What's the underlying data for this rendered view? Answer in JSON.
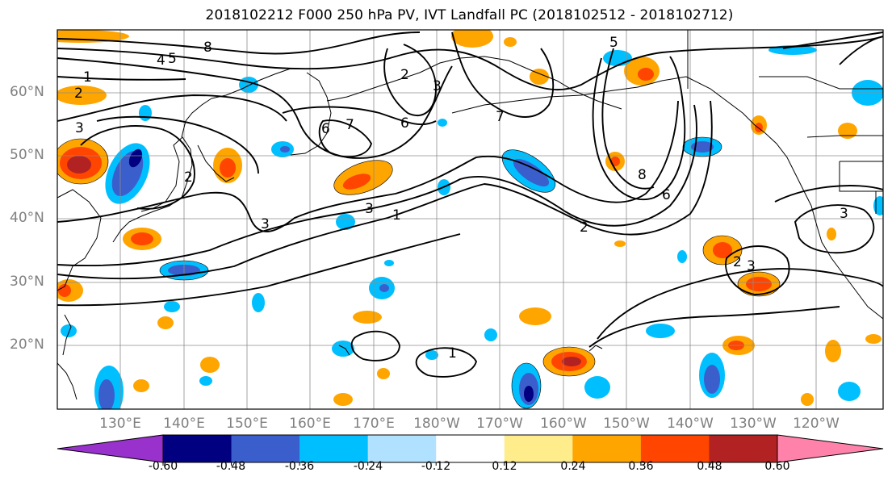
{
  "title": "2018102212 F000 250 hPa PV, IVT Landfall PC (2018102512 - 2018102712)",
  "lat_labels": [
    "60°N",
    "50°N",
    "40°N",
    "30°N",
    "20°N"
  ],
  "lon_labels": [
    "130°E",
    "140°E",
    "150°E",
    "160°E",
    "170°E",
    "180°W",
    "170°W",
    "160°W",
    "150°W",
    "140°W",
    "130°W",
    "120°W"
  ],
  "contour_labels": [
    "8",
    "5",
    "4",
    "1",
    "2",
    "3",
    "7",
    "6",
    "5",
    "3",
    "2",
    "7",
    "6",
    "2",
    "8",
    "6",
    "2",
    "3",
    "1",
    "3",
    "3",
    "2",
    "1",
    "3"
  ],
  "colorbar": {
    "ticks": [
      "-0.60",
      "-0.48",
      "-0.36",
      "-0.24",
      "-0.12",
      "0.12",
      "0.24",
      "0.36",
      "0.48",
      "0.60"
    ],
    "colors": [
      "#9932CC",
      "#000080",
      "#3A5FCD",
      "#00BFFF",
      "#B0E2FF",
      "#FFFFFF",
      "#FFEC8B",
      "#FFA500",
      "#FF4500",
      "#B22222",
      "#FF82AB"
    ]
  }
}
